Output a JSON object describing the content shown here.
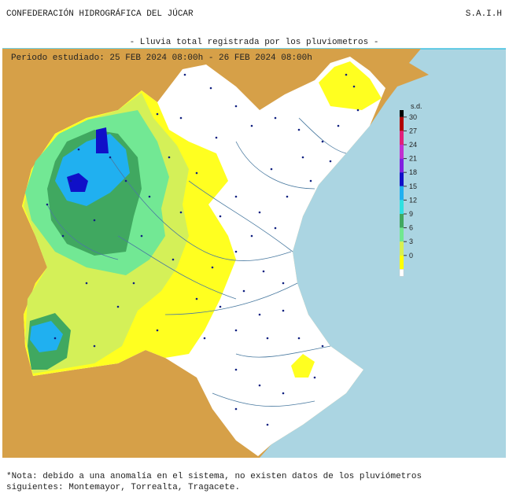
{
  "header": {
    "title": "CONFEDERACIÓN HIDROGRÁFICA DEL JÚCAR",
    "code": "S.A.I.H",
    "subtitle": "- Lluvia total registrada por los pluviometros -"
  },
  "map": {
    "period": "Periodo estudiado: 25 FEB 2024 08:00h - 26 FEB 2024 08:00h"
  },
  "legend": {
    "title": "s.d.",
    "items": [
      {
        "label": 30,
        "color": "#b00000"
      },
      {
        "label": 27,
        "color": "#e0207a"
      },
      {
        "label": 24,
        "color": "#c030d0"
      },
      {
        "label": 21,
        "color": "#8020e0"
      },
      {
        "label": 18,
        "color": "#1010c8"
      },
      {
        "label": 15,
        "color": "#20b0f0"
      },
      {
        "label": 12,
        "color": "#30e0e0"
      },
      {
        "label": 9,
        "color": "#40a860"
      },
      {
        "label": 6,
        "color": "#70e890"
      },
      {
        "label": 3,
        "color": "#d8f050"
      },
      {
        "label": 0,
        "color": "#ffff00"
      }
    ],
    "top": "#000000",
    "bottom": "#ffffff"
  },
  "note": {
    "lines": [
      "*Nota: debido a una anomalía en el sistema, no existen datos de los pluviómetros",
      "siguientes: Montemayor, Torrealta, Tragacete."
    ]
  }
}
